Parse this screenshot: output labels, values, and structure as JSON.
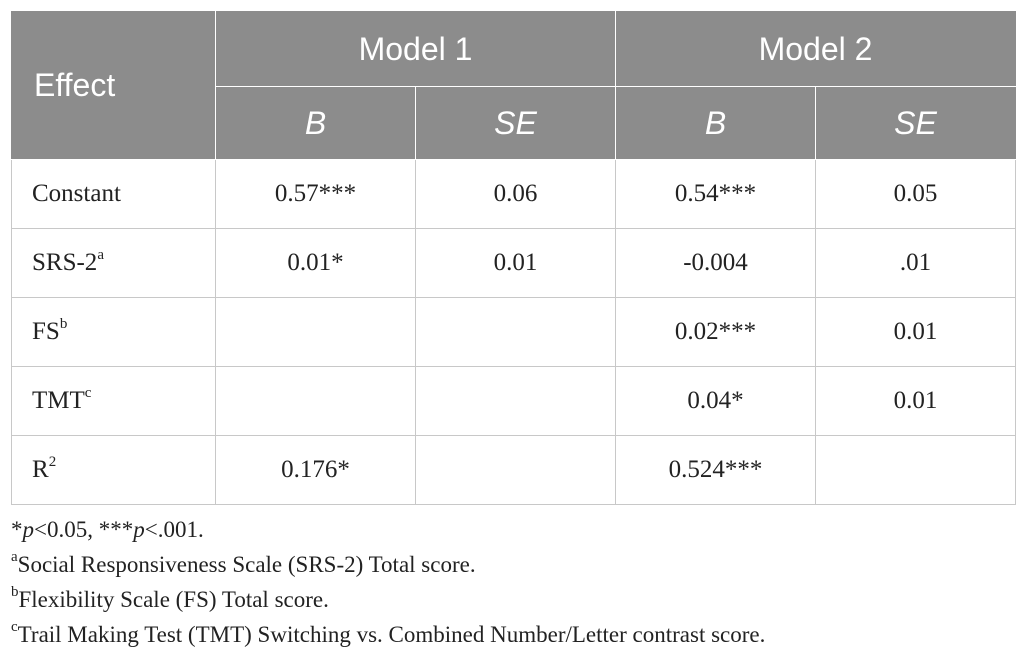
{
  "table": {
    "header": {
      "effect": "Effect",
      "model1": "Model 1",
      "model2": "Model 2",
      "b1": "B",
      "se1": "SE",
      "b2": "B",
      "se2": "SE"
    },
    "rows": [
      {
        "label": "Constant",
        "sup": "",
        "m1_b": "0.57***",
        "m1_se": "0.06",
        "m2_b": "0.54***",
        "m2_se": "0.05"
      },
      {
        "label": "SRS-2",
        "sup": "a",
        "m1_b": "0.01*",
        "m1_se": "0.01",
        "m2_b": "-0.004",
        "m2_se": ".01"
      },
      {
        "label": "FS",
        "sup": "b",
        "m1_b": "",
        "m1_se": "",
        "m2_b": "0.02***",
        "m2_se": "0.01"
      },
      {
        "label": "TMT",
        "sup": "c",
        "m1_b": "",
        "m1_se": "",
        "m2_b": "0.04*",
        "m2_se": "0.01"
      },
      {
        "label": "R",
        "sup": "2",
        "m1_b": "0.176*",
        "m1_se": "",
        "m2_b": "0.524***",
        "m2_se": ""
      }
    ]
  },
  "notes": {
    "sig": {
      "star1": "*",
      "p1": "p",
      "t1": "<0.05, ***",
      "p2": "p",
      "t2": "<.001."
    },
    "a": {
      "sup": "a",
      "text": "Social Responsiveness Scale (SRS-2) Total score."
    },
    "b": {
      "sup": "b",
      "text": "Flexibility Scale (FS) Total score."
    },
    "c": {
      "sup": "c",
      "text": "Trail Making Test (TMT) Switching vs. Combined Number/Letter contrast score."
    }
  }
}
